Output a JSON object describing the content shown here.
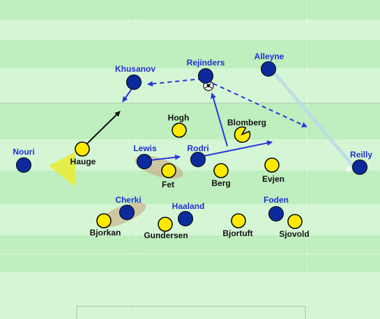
{
  "colors": {
    "pitch_light": "#d4f6d4",
    "pitch_dark": "#bfeebf",
    "team_blue": "#0b2a9c",
    "team_yellow": "#ffea00",
    "label_blue": "#1f2fd6",
    "label_black": "#111111",
    "arrow_blue": "#2a34e0"
  },
  "players": {
    "blue": [
      {
        "id": "khusanov",
        "name": "Khusanov"
      },
      {
        "id": "rejinders",
        "name": "Rejinders"
      },
      {
        "id": "alleyne",
        "name": "Alleyne"
      },
      {
        "id": "nouri",
        "name": "Nouri"
      },
      {
        "id": "lewis",
        "name": "Lewis"
      },
      {
        "id": "rodri",
        "name": "Rodri"
      },
      {
        "id": "reilly",
        "name": "Reilly"
      },
      {
        "id": "cherki",
        "name": "Cherki"
      },
      {
        "id": "haaland",
        "name": "Haaland"
      },
      {
        "id": "foden",
        "name": "Foden"
      }
    ],
    "yellow": [
      {
        "id": "hogh",
        "name": "Hogh"
      },
      {
        "id": "blomberg",
        "name": "Blomberg"
      },
      {
        "id": "hauge",
        "name": "Hauge"
      },
      {
        "id": "fet",
        "name": "Fet"
      },
      {
        "id": "berg",
        "name": "Berg"
      },
      {
        "id": "evjen",
        "name": "Evjen"
      },
      {
        "id": "bjorkan",
        "name": "Bjorkan"
      },
      {
        "id": "gundersen",
        "name": "Gundersen"
      },
      {
        "id": "bjortuft",
        "name": "Bjortuft"
      },
      {
        "id": "sjovold",
        "name": "Sjovold"
      }
    ]
  }
}
